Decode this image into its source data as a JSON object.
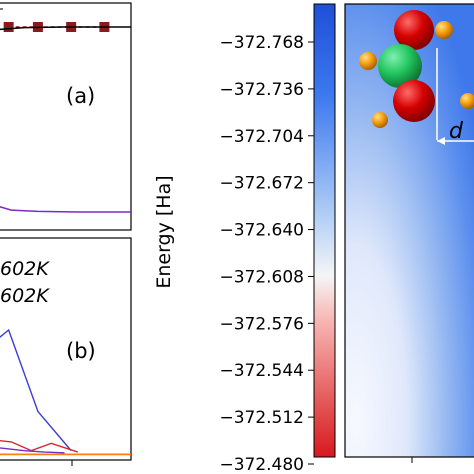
{
  "chart_data": [
    {
      "type": "line",
      "panel": "(a)",
      "partial": true,
      "series": [
        {
          "name": "",
          "color": "#8b1a1a",
          "marker": "square",
          "style": "dashed",
          "x": [
            0.08,
            0.3,
            0.55,
            0.8
          ],
          "values": [
            0.0,
            0.0,
            0.0,
            0.0
          ]
        },
        {
          "name": "",
          "color": "#000000",
          "style": "solid",
          "x": [
            0.0,
            0.2,
            0.5,
            0.8,
            1.0
          ],
          "values": [
            -0.2,
            -0.05,
            0.0,
            0.0,
            0.0
          ]
        },
        {
          "name": "",
          "color": "#7b2cbf",
          "style": "solid",
          "x": [
            0.0,
            0.1,
            0.3,
            0.6,
            1.0
          ],
          "values": [
            -14.0,
            -14.3,
            -14.4,
            -14.45,
            -14.45
          ]
        }
      ]
    },
    {
      "type": "line",
      "panel": "(b)",
      "partial": true,
      "legend_entries": [
        "602K",
        "602K"
      ],
      "series": [
        {
          "name": "",
          "color": "#3b3bd6",
          "x": [
            0.0,
            0.08,
            0.3,
            0.55
          ],
          "values": [
            8.0,
            8.6,
            3.0,
            0.3
          ]
        },
        {
          "name": "",
          "color": "#d62728",
          "x": [
            0.0,
            0.1,
            0.25,
            0.4,
            0.6
          ],
          "values": [
            1.0,
            0.9,
            0.3,
            0.8,
            0.2
          ]
        },
        {
          "name": "",
          "color": "#7b2cbf",
          "x": [
            0.0,
            0.2,
            0.35,
            0.5
          ],
          "values": [
            0.5,
            0.3,
            0.2,
            0.15
          ]
        },
        {
          "name": "",
          "color": "#2ca02c",
          "x": [
            0.0,
            0.5,
            1.0
          ],
          "values": [
            0.05,
            0.05,
            0.05
          ]
        },
        {
          "name": "",
          "color": "#ff7f0e",
          "x": [
            0.0,
            0.5,
            1.0
          ],
          "values": [
            0.03,
            0.03,
            0.03
          ]
        }
      ]
    },
    {
      "type": "heatmap",
      "colorbar": {
        "label": "Energy [Ha]",
        "ticks": [
          "−372.768",
          "−372.736",
          "−372.704",
          "−372.672",
          "−372.640",
          "−372.608",
          "−372.576",
          "−372.544",
          "−372.512",
          "−372.480"
        ],
        "range": [
          -372.78,
          -372.48
        ],
        "cmap": [
          "#d7191c",
          "#f5a3a3",
          "#f7f7f7",
          "#9ec3f3",
          "#2b6cf0",
          "#1e4fd8"
        ]
      },
      "annotation": "d",
      "molecule_atoms": [
        {
          "element": "O",
          "color": "#cc0000"
        },
        {
          "element": "C",
          "color": "#22c55e"
        },
        {
          "element": "O",
          "color": "#cc0000"
        },
        {
          "element": "H",
          "color": "#f59e0b"
        },
        {
          "element": "H",
          "color": "#f59e0b"
        },
        {
          "element": "H",
          "color": "#f59e0b"
        },
        {
          "element": "H",
          "color": "#f59e0b"
        }
      ]
    }
  ]
}
